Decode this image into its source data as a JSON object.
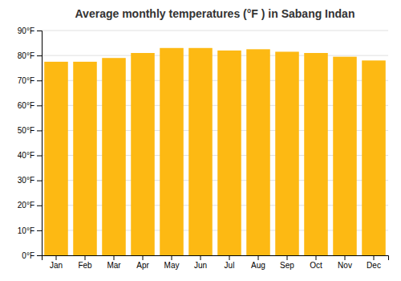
{
  "chart_data": {
    "type": "bar",
    "title": "Average monthly temperatures (°F ) in Sabang Indan",
    "categories": [
      "Jan",
      "Feb",
      "Mar",
      "Apr",
      "May",
      "Jun",
      "Jul",
      "Aug",
      "Sep",
      "Oct",
      "Nov",
      "Dec"
    ],
    "values": [
      77.5,
      77.5,
      79.0,
      81.0,
      83.0,
      83.0,
      82.0,
      82.5,
      81.5,
      81.0,
      79.5,
      78.0
    ],
    "color": "#FDB913",
    "ylim": [
      0,
      90
    ],
    "yticks": [
      {
        "value": 0,
        "label": "0°F"
      },
      {
        "value": 10,
        "label": "10°F"
      },
      {
        "value": 20,
        "label": "20°F"
      },
      {
        "value": 30,
        "label": "30°F"
      },
      {
        "value": 40,
        "label": "40°F"
      },
      {
        "value": 50,
        "label": "50°F"
      },
      {
        "value": 60,
        "label": "60°F"
      },
      {
        "value": 70,
        "label": "70°F"
      },
      {
        "value": 80,
        "label": "80°F"
      },
      {
        "value": 90,
        "label": "90°F"
      }
    ],
    "grid": true
  }
}
